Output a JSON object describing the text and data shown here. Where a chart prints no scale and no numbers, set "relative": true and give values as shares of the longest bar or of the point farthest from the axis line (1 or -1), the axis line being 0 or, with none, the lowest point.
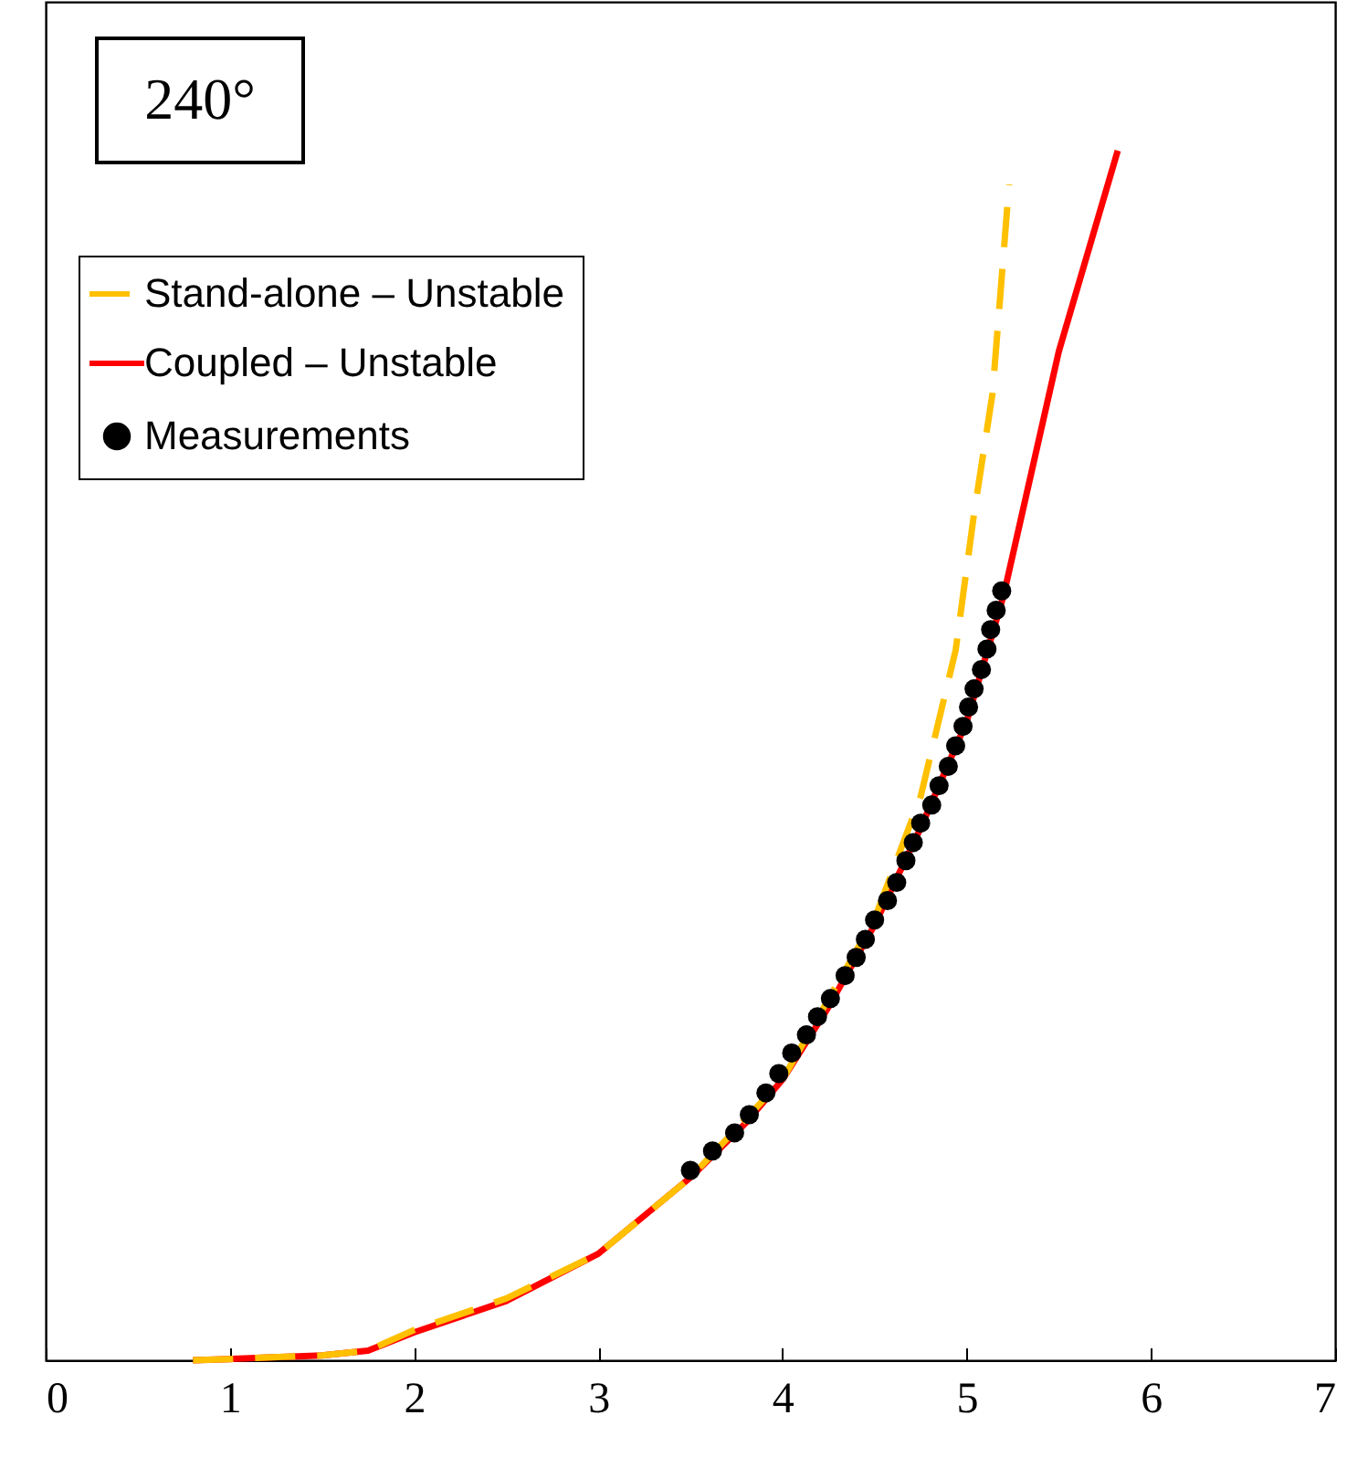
{
  "chart_data": {
    "type": "line",
    "relative": true,
    "xlim": [
      0,
      7
    ],
    "xticks": [
      0,
      1,
      2,
      3,
      4,
      5,
      6,
      7
    ],
    "tick_labels": "x",
    "grid": false,
    "legend": "top left",
    "annotations": [
      "240°"
    ],
    "series": [
      {
        "name": "Stand-alone – Unstable",
        "type": "line",
        "color": "#ffc000",
        "line_style": "dashed",
        "x": [
          0.8,
          1.0,
          1.5,
          1.75,
          2.0,
          2.5,
          3.0,
          3.5,
          4.0,
          4.5,
          4.75,
          4.94,
          5.04,
          5.14,
          5.23
        ],
        "values": [
          0,
          0.001,
          0.004,
          0.008,
          0.025,
          0.051,
          0.088,
          0.151,
          0.232,
          0.365,
          0.466,
          0.587,
          0.7,
          0.799,
          0.972
        ]
      },
      {
        "name": "Coupled – Unstable",
        "type": "line",
        "color": "#ff0000",
        "line_style": "solid",
        "x": [
          0.8,
          1.0,
          1.5,
          1.75,
          2.0,
          2.5,
          3.0,
          3.5,
          3.8,
          4.0,
          4.25,
          4.5,
          4.75,
          5.0,
          5.2,
          5.5,
          5.82
        ],
        "values": [
          0,
          0.001,
          0.004,
          0.008,
          0.023,
          0.049,
          0.088,
          0.151,
          0.196,
          0.232,
          0.292,
          0.36,
          0.44,
          0.528,
          0.632,
          0.834,
          1
        ]
      },
      {
        "name": "Measurements",
        "type": "scatter",
        "color": "#000000",
        "marker": "circle",
        "x": [
          3.5,
          3.62,
          3.74,
          3.82,
          3.91,
          3.98,
          4.05,
          4.13,
          4.19,
          4.26,
          4.34,
          4.4,
          4.45,
          4.5,
          4.57,
          4.62,
          4.67,
          4.71,
          4.75,
          4.81,
          4.85,
          4.9,
          4.94,
          4.98,
          5.01,
          5.04,
          5.08,
          5.11,
          5.13,
          5.16,
          5.19
        ],
        "values": [
          0.157,
          0.173,
          0.188,
          0.203,
          0.221,
          0.237,
          0.254,
          0.269,
          0.284,
          0.299,
          0.318,
          0.333,
          0.348,
          0.364,
          0.38,
          0.395,
          0.413,
          0.428,
          0.444,
          0.459,
          0.475,
          0.491,
          0.508,
          0.524,
          0.54,
          0.555,
          0.571,
          0.588,
          0.604,
          0.62,
          0.636
        ]
      }
    ]
  }
}
